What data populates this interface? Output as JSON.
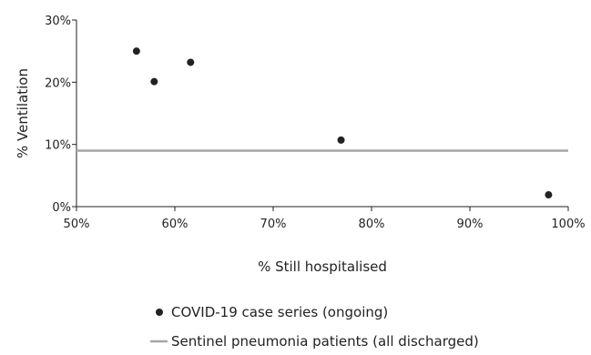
{
  "chart_data": {
    "type": "scatter",
    "title": "",
    "xlabel": "% Still hospitalised",
    "ylabel": "% Ventilation",
    "xlim": [
      50,
      100
    ],
    "ylim": [
      0,
      30
    ],
    "x_ticks": [
      50,
      60,
      70,
      80,
      90,
      100
    ],
    "x_tick_labels": [
      "50%",
      "60%",
      "70%",
      "80%",
      "90%",
      "100%"
    ],
    "y_ticks": [
      0,
      10,
      20,
      30
    ],
    "y_tick_labels": [
      "0%",
      "10%",
      "20%",
      "30%"
    ],
    "grid": false,
    "legend_position": "bottom",
    "series": [
      {
        "name": "COVID-19 case series (ongoing)",
        "kind": "scatter",
        "color": "#222222",
        "points": [
          {
            "x": 56.1,
            "y": 25.0
          },
          {
            "x": 57.9,
            "y": 20.1
          },
          {
            "x": 61.6,
            "y": 23.2
          },
          {
            "x": 76.9,
            "y": 10.7
          },
          {
            "x": 98.0,
            "y": 1.9
          }
        ]
      },
      {
        "name": "Sentinel pneumonia patients (all discharged)",
        "kind": "reference-line",
        "color": "#a6a6a6",
        "y": 9.0
      }
    ]
  }
}
